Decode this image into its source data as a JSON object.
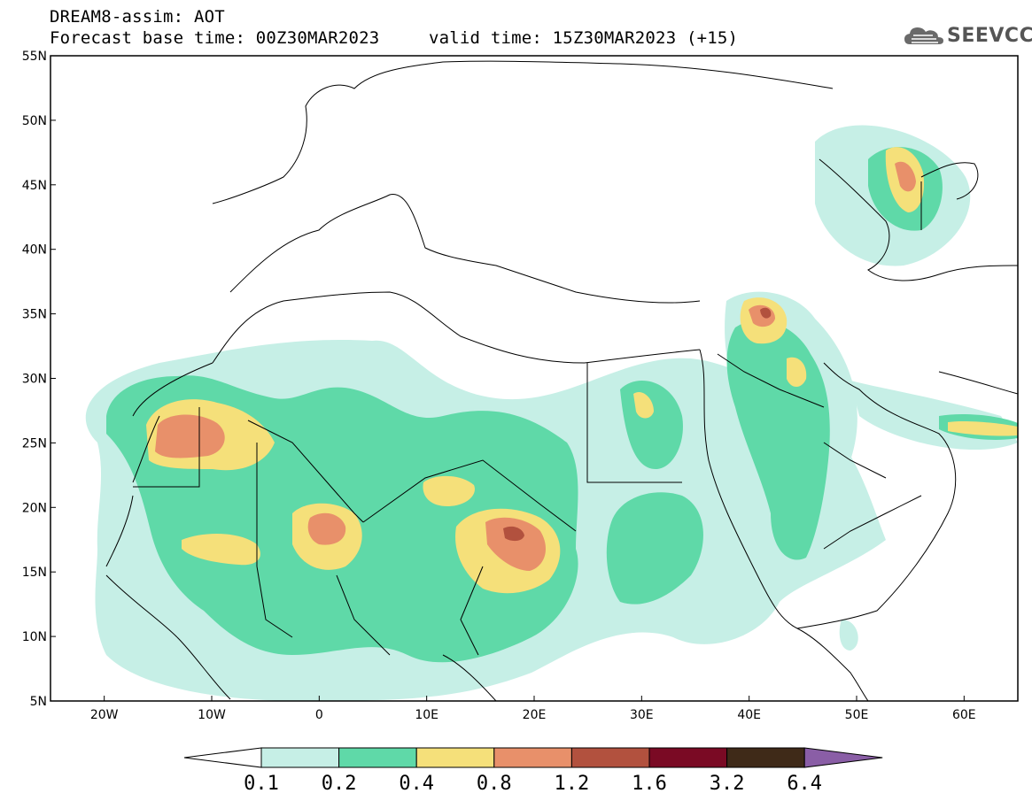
{
  "header": {
    "line1": "DREAM8-assim: AOT",
    "line2": "Forecast base time: 00Z30MAR2023",
    "line3": "valid time: 15Z30MAR2023 (+15)"
  },
  "logo": {
    "text": "SEEVCCC",
    "icon": "cloud-icon"
  },
  "map": {
    "projection": "lat-lon",
    "lon_range": [
      -25,
      65
    ],
    "lat_range": [
      5,
      55
    ],
    "lat_ticks": [
      "55N",
      "50N",
      "45N",
      "40N",
      "35N",
      "30N",
      "25N",
      "20N",
      "15N",
      "10N",
      "5N"
    ],
    "lon_ticks": [
      "20W",
      "10W",
      "0",
      "10E",
      "20E",
      "30E",
      "40E",
      "50E",
      "60E"
    ]
  },
  "colorbar": {
    "labels": [
      "0.1",
      "0.2",
      "0.4",
      "0.8",
      "1.2",
      "1.6",
      "3.2",
      "6.4"
    ],
    "colors": [
      "#ffffff",
      "#c6efe6",
      "#5fd9a8",
      "#f5e07a",
      "#e8906a",
      "#b2513e",
      "#7a0a24",
      "#3f2a18",
      "#8a5ea6"
    ]
  }
}
